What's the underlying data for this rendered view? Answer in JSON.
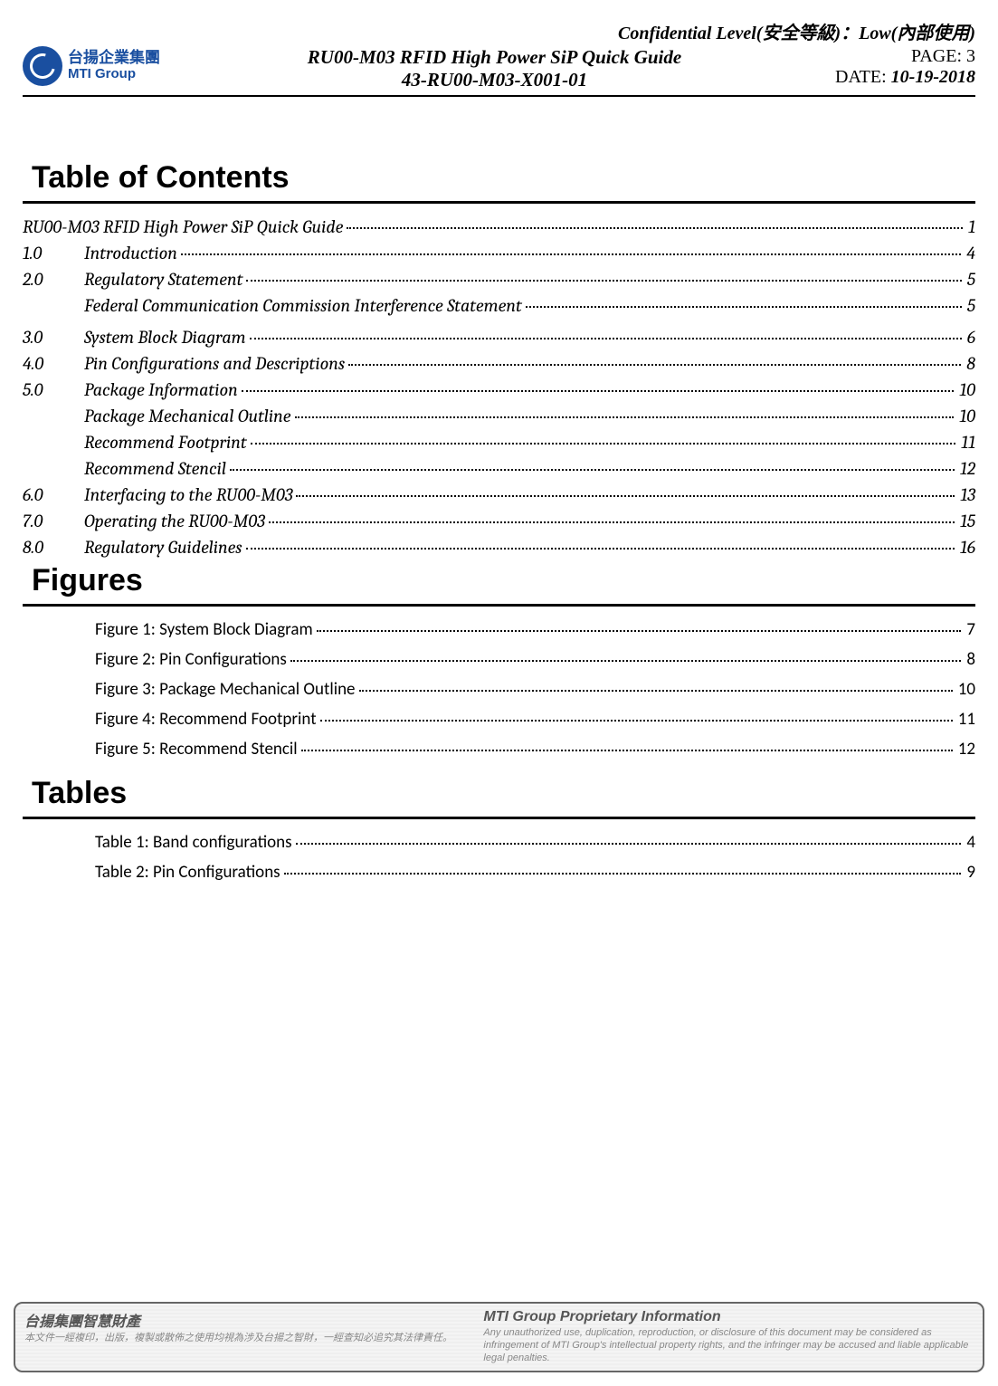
{
  "header": {
    "confidential": "Confidential Level(安全等級)：Low(內部使用)",
    "logo_cn": "台揚企業集團",
    "logo_en": "MTI Group",
    "doc_title": "RU00-M03 RFID High Power SiP Quick Guide",
    "doc_number": "43-RU00-M03-X001-01",
    "page_label": "PAGE:",
    "page_value": "3",
    "date_label": "DATE:",
    "date_value": "10-19-2018"
  },
  "headings": {
    "toc": "Table of Contents",
    "figures": "Figures",
    "tables": "Tables"
  },
  "toc": [
    {
      "num": "",
      "title": "RU00-M03 RFID High Power SiP Quick Guide",
      "page": "1",
      "noindent": true
    },
    {
      "num": "1.0",
      "title": "Introduction",
      "page": "4"
    },
    {
      "num": "2.0",
      "title": "Regulatory Statement",
      "page": "5"
    },
    {
      "num": "",
      "title": "Federal Communication Commission Interference Statement",
      "page": "5",
      "sub": true,
      "gapAfter": true
    },
    {
      "num": "3.0",
      "title": "System Block Diagram",
      "page": "6"
    },
    {
      "num": "4.0",
      "title": "Pin Configurations and Descriptions",
      "page": "8"
    },
    {
      "num": "5.0",
      "title": "Package Information",
      "page": "10"
    },
    {
      "num": "",
      "title": "Package Mechanical Outline",
      "page": "10",
      "sub": true
    },
    {
      "num": "",
      "title": "Recommend Footprint",
      "page": "11",
      "sub": true
    },
    {
      "num": "",
      "title": "Recommend Stencil",
      "page": "12",
      "sub": true
    },
    {
      "num": "6.0",
      "title": "Interfacing to the RU00-M03",
      "page": "13"
    },
    {
      "num": "7.0",
      "title": "Operating the RU00-M03",
      "page": "15"
    },
    {
      "num": "8.0",
      "title": "Regulatory Guidelines",
      "page": "16"
    }
  ],
  "figures": [
    {
      "title": "Figure 1: System Block Diagram",
      "page": "7"
    },
    {
      "title": "Figure 2: Pin Configurations",
      "page": "8"
    },
    {
      "title": "Figure 3: Package Mechanical Outline",
      "page": "10"
    },
    {
      "title": "Figure 4: Recommend Footprint",
      "page": "11"
    },
    {
      "title": "Figure 5: Recommend Stencil",
      "page": "12"
    }
  ],
  "tables": [
    {
      "title": "Table 1: Band configurations",
      "page": "4"
    },
    {
      "title": "Table 2: Pin Configurations",
      "page": "9"
    }
  ],
  "footer": {
    "left_heading": "台揚集團智慧財產",
    "left_body": "本文件一經複印，出版，複製或散佈之使用均視為涉及台揚之智財，一經查知必追究其法律責任。",
    "right_heading": "MTI Group Proprietary Information",
    "right_body": "Any unauthorized use, duplication, reproduction, or disclosure of this document may be considered as infringement of MTI Group's intellectual property rights, and the infringer may be accused and liable applicable legal penalties."
  }
}
